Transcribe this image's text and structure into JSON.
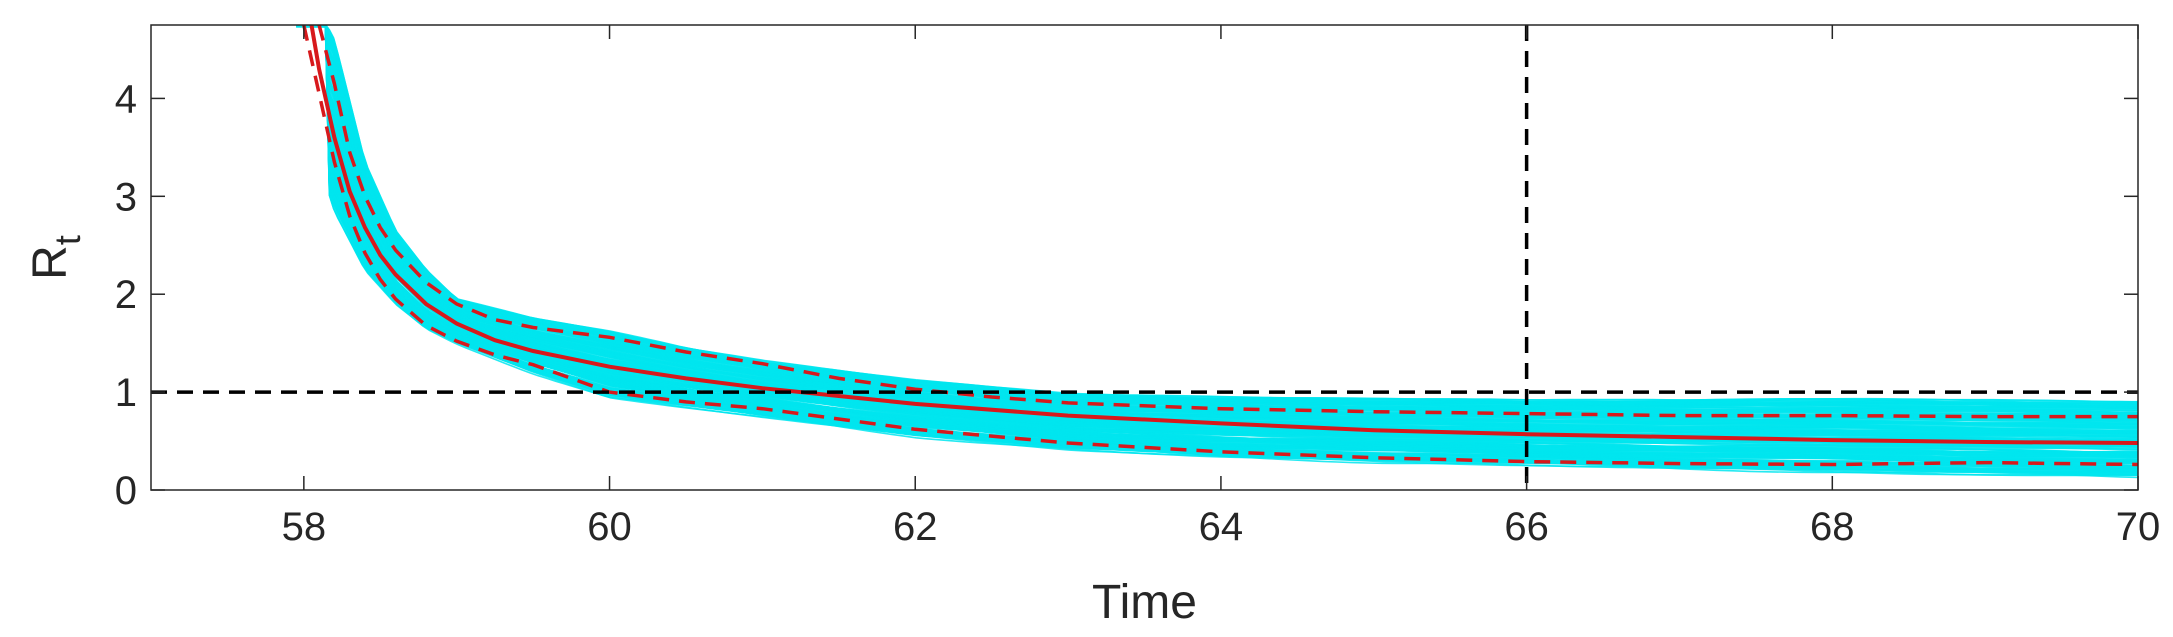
{
  "chart_data": {
    "type": "line",
    "title": "",
    "xlabel": "Time",
    "ylabel": "R",
    "ylabel_subscript": "t",
    "xlim": [
      57,
      70
    ],
    "ylim": [
      0,
      4.75
    ],
    "xticks": [
      58,
      60,
      62,
      64,
      66,
      68,
      70
    ],
    "yticks": [
      0,
      1,
      2,
      3,
      4
    ],
    "xtick_labels": [
      "58",
      "60",
      "62",
      "64",
      "66",
      "68",
      "70"
    ],
    "ytick_labels": [
      "0",
      "1",
      "2",
      "3",
      "4"
    ],
    "grid": false,
    "legend": "none",
    "colors": {
      "ensemble": "#00e5ee",
      "mean": "#d7191c",
      "reference": "#000000",
      "axes": "#262626"
    },
    "reference_lines": [
      {
        "orientation": "horizontal",
        "value": 1,
        "style": "dashed"
      },
      {
        "orientation": "vertical",
        "value": 66,
        "style": "dashed"
      }
    ],
    "ensemble": {
      "description_count": 200,
      "lower": {
        "x": [
          57.95,
          58.0,
          58.2,
          58.4,
          58.6,
          58.8,
          59.0,
          59.5,
          60.0,
          60.5,
          61.0,
          62.0,
          63.0,
          64.0,
          65.0,
          66.0,
          67.0,
          68.0,
          69.0,
          70.0
        ],
        "y": [
          4.75,
          3.85,
          2.85,
          2.25,
          1.9,
          1.65,
          1.5,
          1.2,
          0.95,
          0.85,
          0.75,
          0.55,
          0.42,
          0.34,
          0.29,
          0.26,
          0.22,
          0.19,
          0.16,
          0.14
        ]
      },
      "upper": {
        "x": [
          58.15,
          58.2,
          58.4,
          58.6,
          58.8,
          59.0,
          59.5,
          60.0,
          60.5,
          61.0,
          62.0,
          63.0,
          64.0,
          65.0,
          66.0,
          67.0,
          68.0,
          69.0,
          70.0
        ],
        "y": [
          4.75,
          4.6,
          3.35,
          2.65,
          2.25,
          1.95,
          1.75,
          1.62,
          1.45,
          1.32,
          1.12,
          0.98,
          0.95,
          0.93,
          0.92,
          0.92,
          0.93,
          0.92,
          0.9
        ]
      }
    },
    "series": [
      {
        "role": "mean",
        "style": "solid",
        "x": [
          58.05,
          58.1,
          58.2,
          58.3,
          58.4,
          58.5,
          58.6,
          58.8,
          59.0,
          59.25,
          59.5,
          59.75,
          60.0,
          60.5,
          61.0,
          61.5,
          62.0,
          63.0,
          64.0,
          65.0,
          66.0,
          67.0,
          68.0,
          69.0,
          70.0
        ],
        "y": [
          4.75,
          4.3,
          3.6,
          3.05,
          2.68,
          2.4,
          2.2,
          1.9,
          1.7,
          1.53,
          1.42,
          1.34,
          1.26,
          1.14,
          1.04,
          0.96,
          0.88,
          0.76,
          0.68,
          0.61,
          0.57,
          0.54,
          0.51,
          0.49,
          0.48
        ]
      },
      {
        "role": "upper-bound",
        "style": "dashed",
        "x": [
          58.1,
          58.2,
          58.3,
          58.4,
          58.5,
          58.6,
          58.8,
          59.0,
          59.25,
          59.5,
          60.0,
          60.5,
          61.0,
          61.5,
          62.0,
          62.5,
          63.0,
          64.0,
          65.0,
          66.0,
          67.0,
          68.0,
          69.0,
          70.0
        ],
        "y": [
          4.75,
          4.15,
          3.45,
          3.0,
          2.68,
          2.45,
          2.12,
          1.9,
          1.74,
          1.66,
          1.56,
          1.41,
          1.29,
          1.14,
          1.03,
          0.95,
          0.89,
          0.83,
          0.8,
          0.78,
          0.76,
          0.76,
          0.75,
          0.75
        ]
      },
      {
        "role": "lower-bound",
        "style": "dashed",
        "x": [
          58.0,
          58.1,
          58.2,
          58.3,
          58.4,
          58.5,
          58.6,
          58.8,
          59.0,
          59.25,
          59.5,
          60.0,
          60.5,
          61.0,
          62.0,
          63.0,
          64.0,
          65.0,
          66.0,
          67.0,
          68.0,
          69.0,
          70.0
        ],
        "y": [
          4.75,
          4.05,
          3.35,
          2.8,
          2.42,
          2.15,
          1.95,
          1.68,
          1.52,
          1.38,
          1.28,
          1.0,
          0.9,
          0.83,
          0.62,
          0.48,
          0.39,
          0.33,
          0.29,
          0.27,
          0.26,
          0.28,
          0.26
        ]
      }
    ]
  }
}
